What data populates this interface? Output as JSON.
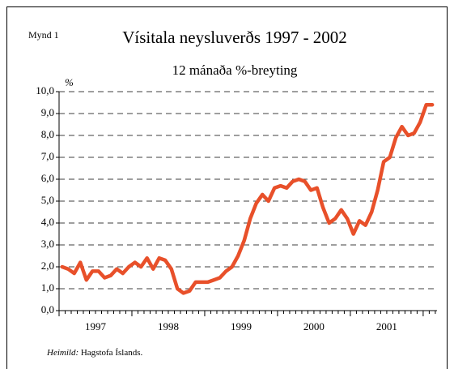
{
  "chart_data": {
    "type": "line",
    "figure_label": "Mynd 1",
    "title": "Vísitala neysluverðs 1997 - 2002",
    "subtitle": "12 mánaða %-breyting",
    "y_label": "%",
    "source_label": "Heimild:",
    "source": "Hagstofa Íslands.",
    "xlim": [
      1997,
      2002.19
    ],
    "xticks": [
      {
        "value": 1997.5,
        "label": "1997"
      },
      {
        "value": 1998.5,
        "label": "1998"
      },
      {
        "value": 1999.5,
        "label": "1999"
      },
      {
        "value": 2000.5,
        "label": "2000"
      },
      {
        "value": 2001.5,
        "label": "2001"
      }
    ],
    "ylim": [
      0,
      10
    ],
    "yticks": [
      {
        "value": 0,
        "label": "0,0"
      },
      {
        "value": 1,
        "label": "1,0"
      },
      {
        "value": 2,
        "label": "2,0"
      },
      {
        "value": 3,
        "label": "3,0"
      },
      {
        "value": 4,
        "label": "4,0"
      },
      {
        "value": 5,
        "label": "5,0"
      },
      {
        "value": 6,
        "label": "6,0"
      },
      {
        "value": 7,
        "label": "7,0"
      },
      {
        "value": 8,
        "label": "8,0"
      },
      {
        "value": 9,
        "label": "9,0"
      },
      {
        "value": 10,
        "label": "10,0"
      }
    ],
    "grid": true,
    "x": [
      1997.042,
      1997.125,
      1997.208,
      1997.292,
      1997.375,
      1997.458,
      1997.542,
      1997.625,
      1997.708,
      1997.792,
      1997.875,
      1997.958,
      1998.042,
      1998.125,
      1998.208,
      1998.292,
      1998.375,
      1998.458,
      1998.542,
      1998.625,
      1998.708,
      1998.792,
      1998.875,
      1998.958,
      1999.042,
      1999.125,
      1999.208,
      1999.292,
      1999.375,
      1999.458,
      1999.542,
      1999.625,
      1999.708,
      1999.792,
      1999.875,
      1999.958,
      2000.042,
      2000.125,
      2000.208,
      2000.292,
      2000.375,
      2000.458,
      2000.542,
      2000.625,
      2000.708,
      2000.792,
      2000.875,
      2000.958,
      2001.042,
      2001.125,
      2001.208,
      2001.292,
      2001.375,
      2001.458,
      2001.542,
      2001.625,
      2001.708,
      2001.792,
      2001.875,
      2001.958,
      2002.042,
      2002.125
    ],
    "color": "#e8502a",
    "values": [
      2.0,
      1.9,
      1.7,
      2.2,
      1.4,
      1.8,
      1.8,
      1.5,
      1.6,
      1.9,
      1.7,
      2.0,
      2.2,
      2.0,
      2.4,
      1.9,
      2.4,
      2.3,
      1.9,
      1.0,
      0.8,
      0.9,
      1.3,
      1.3,
      1.3,
      1.4,
      1.5,
      1.8,
      2.0,
      2.5,
      3.2,
      4.2,
      4.9,
      5.3,
      5.0,
      5.6,
      5.7,
      5.6,
      5.9,
      6.0,
      5.9,
      5.5,
      5.6,
      4.7,
      4.0,
      4.2,
      4.6,
      4.2,
      3.5,
      4.1,
      3.9,
      4.5,
      5.5,
      6.8,
      7.0,
      7.9,
      8.4,
      8.0,
      8.1,
      8.6,
      9.4,
      9.4
    ]
  }
}
